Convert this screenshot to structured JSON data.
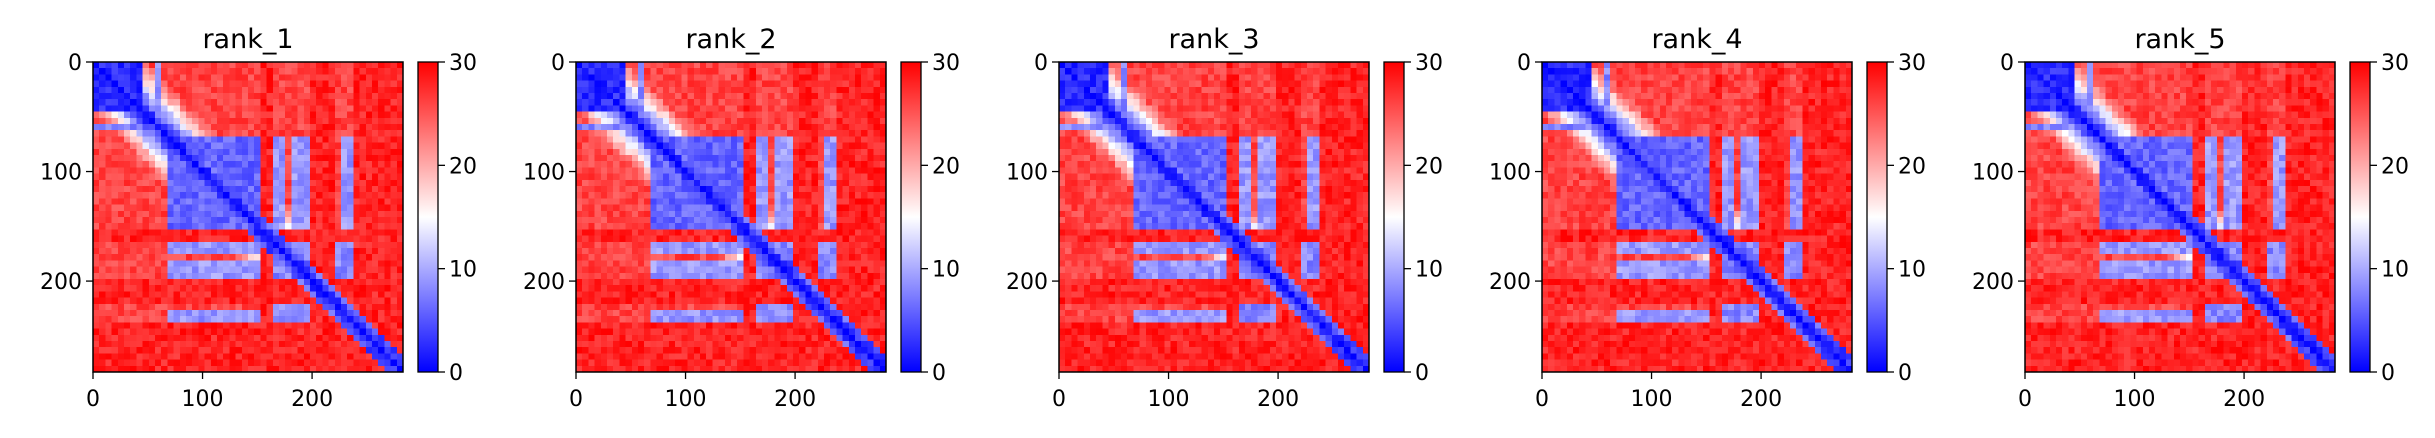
{
  "chart_data": [
    {
      "type": "heatmap",
      "title": "rank_1",
      "xlim": [
        0,
        283
      ],
      "ylim": [
        283,
        0
      ],
      "x_ticks": [
        0,
        100,
        200
      ],
      "y_ticks": [
        0,
        100,
        200
      ],
      "colorbar": {
        "range": [
          0,
          30
        ],
        "ticks": [
          0,
          10,
          20,
          30
        ],
        "colormap": "bwr"
      }
    },
    {
      "type": "heatmap",
      "title": "rank_2",
      "xlim": [
        0,
        283
      ],
      "ylim": [
        283,
        0
      ],
      "x_ticks": [
        0,
        100,
        200
      ],
      "y_ticks": [
        0,
        100,
        200
      ],
      "colorbar": {
        "range": [
          0,
          30
        ],
        "ticks": [
          0,
          10,
          20,
          30
        ],
        "colormap": "bwr"
      }
    },
    {
      "type": "heatmap",
      "title": "rank_3",
      "xlim": [
        0,
        283
      ],
      "ylim": [
        283,
        0
      ],
      "x_ticks": [
        0,
        100,
        200
      ],
      "y_ticks": [
        0,
        100,
        200
      ],
      "colorbar": {
        "range": [
          0,
          30
        ],
        "ticks": [
          0,
          10,
          20,
          30
        ],
        "colormap": "bwr"
      }
    },
    {
      "type": "heatmap",
      "title": "rank_4",
      "xlim": [
        0,
        283
      ],
      "ylim": [
        283,
        0
      ],
      "x_ticks": [
        0,
        100,
        200
      ],
      "y_ticks": [
        0,
        100,
        200
      ],
      "colorbar": {
        "range": [
          0,
          30
        ],
        "ticks": [
          0,
          10,
          20,
          30
        ],
        "colormap": "bwr"
      }
    },
    {
      "type": "heatmap",
      "title": "rank_5",
      "xlim": [
        0,
        283
      ],
      "ylim": [
        283,
        0
      ],
      "x_ticks": [
        0,
        100,
        200
      ],
      "y_ticks": [
        0,
        100,
        200
      ],
      "colorbar": {
        "range": [
          0,
          30
        ],
        "ticks": [
          0,
          10,
          20,
          30
        ],
        "colormap": "bwr"
      }
    }
  ],
  "colors": {
    "low": "#0000ff",
    "mid": "#ffffff",
    "high": "#ff0000"
  }
}
